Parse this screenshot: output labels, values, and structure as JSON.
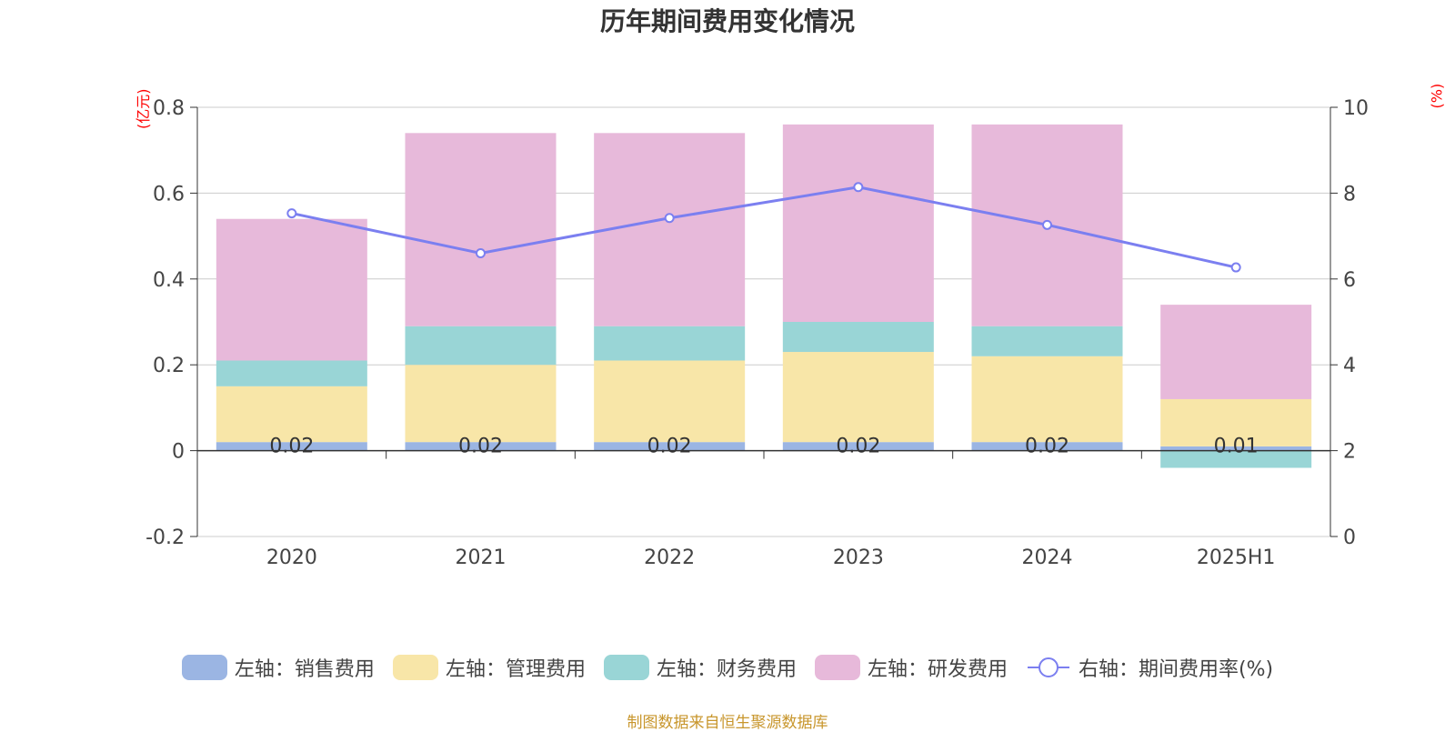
{
  "chart_data": {
    "type": "bar",
    "title": "历年期间费用变化情况",
    "categories": [
      "2020",
      "2021",
      "2022",
      "2023",
      "2024",
      "2025H1"
    ],
    "left_unit": "(亿元)",
    "right_unit": "(%)",
    "ylim_left": [
      -0.2,
      0.8
    ],
    "ylim_right": [
      0,
      10
    ],
    "left_ticks": [
      "-0.2",
      "0",
      "0.2",
      "0.4",
      "0.6",
      "0.8"
    ],
    "right_ticks": [
      "0",
      "2",
      "4",
      "6",
      "8",
      "10"
    ],
    "grid": true,
    "legend_position": "bottom",
    "series": [
      {
        "name": "左轴：销售费用",
        "color": "#9bb5e3",
        "values": [
          0.02,
          0.02,
          0.02,
          0.02,
          0.02,
          0.01
        ],
        "labels": [
          "0.02",
          "0.02",
          "0.02",
          "0.02",
          "0.02",
          "0.01"
        ]
      },
      {
        "name": "左轴：管理费用",
        "color": "#f8e6a8",
        "values": [
          0.13,
          0.18,
          0.19,
          0.21,
          0.2,
          0.11
        ]
      },
      {
        "name": "左轴：财务费用",
        "color": "#99d5d6",
        "values": [
          0.06,
          0.09,
          0.08,
          0.07,
          0.07,
          -0.04
        ]
      },
      {
        "name": "左轴：研发费用",
        "color": "#e7b9da",
        "values": [
          0.33,
          0.45,
          0.45,
          0.46,
          0.47,
          0.22
        ]
      }
    ],
    "line_series": {
      "name": "右轴：期间费用率(%)",
      "color": "#7b7ff0",
      "values": [
        7.53,
        6.6,
        7.42,
        8.14,
        7.26,
        6.27
      ]
    }
  },
  "source": "制图数据来自恒生聚源数据库"
}
